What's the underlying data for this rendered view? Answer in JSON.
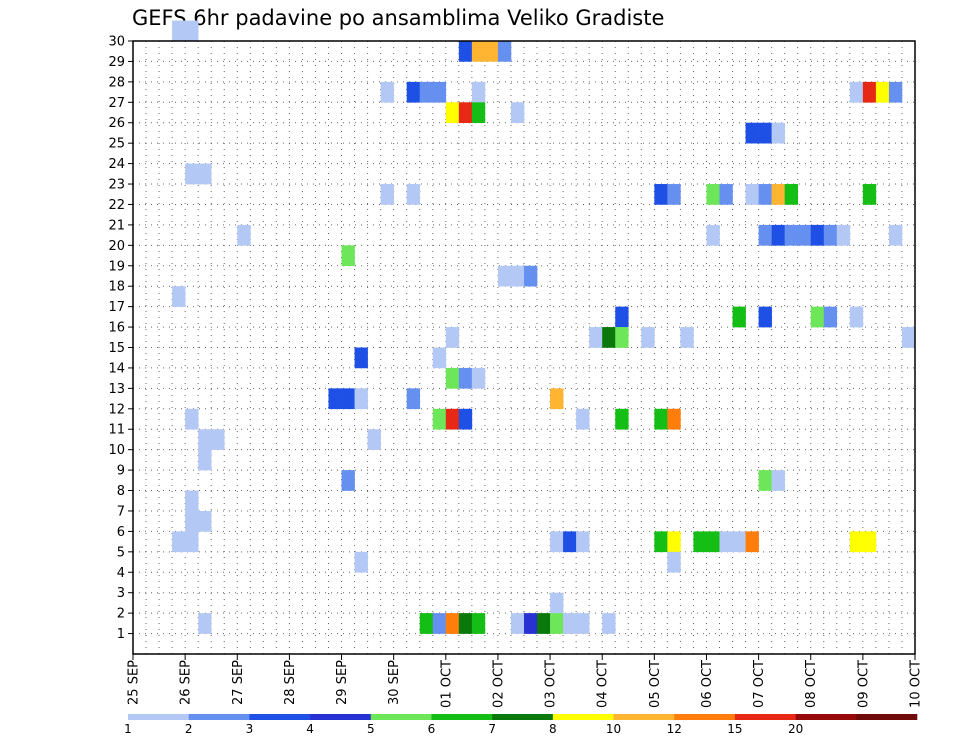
{
  "chart_data": {
    "type": "heatmap",
    "title": "GEFS 6hr padavine po ansamblima Veliko Gradiste",
    "xlabel": "",
    "ylabel": "",
    "x_tick_labels": [
      "25 SEP",
      "26 SEP",
      "27 SEP",
      "28 SEP",
      "29 SEP",
      "30 SEP",
      "01 OCT",
      "02 OCT",
      "03 OCT",
      "04 OCT",
      "05 OCT",
      "06 OCT",
      "07 OCT",
      "08 OCT",
      "09 OCT",
      "10 OCT"
    ],
    "x_range_days": [
      0,
      15
    ],
    "y_tick_labels": [
      "1",
      "2",
      "3",
      "4",
      "5",
      "6",
      "7",
      "8",
      "9",
      "10",
      "11",
      "12",
      "13",
      "14",
      "15",
      "16",
      "17",
      "18",
      "19",
      "20",
      "21",
      "22",
      "23",
      "24",
      "25",
      "26",
      "27",
      "28",
      "29",
      "30"
    ],
    "y_range_members": [
      0,
      30
    ],
    "grid": "dotted",
    "legend": {
      "placement": "bottom",
      "thresholds_mm": [
        "1",
        "2",
        "3",
        "4",
        "5",
        "6",
        "7",
        "8",
        "10",
        "12",
        "15",
        "20"
      ],
      "colors": [
        "#b4c8f5",
        "#6690f0",
        "#1e50e6",
        "#2832d2",
        "#6ee65a",
        "#14be14",
        "#0a780a",
        "#ffff00",
        "#ffb432",
        "#ff7d0a",
        "#e62814",
        "#960a0a",
        "#6e0a0a"
      ]
    },
    "colors": [
      "#b4c8f5",
      "#6690f0",
      "#1e50e6",
      "#2832d2",
      "#6ee65a",
      "#14be14",
      "#0a780a",
      "#ffff00",
      "#ffb432",
      "#ff7d0a",
      "#e62814",
      "#960a0a",
      "#6e0a0a"
    ],
    "cells_note": "each cell: [day_offset_from_25_SEP (step 0.25 = 6h), member_row (1-30), color_class_index]",
    "cells": [
      [
        0.75,
        30,
        0
      ],
      [
        1.0,
        30,
        0
      ],
      [
        6.25,
        29,
        2
      ],
      [
        6.5,
        29,
        8
      ],
      [
        6.75,
        29,
        8
      ],
      [
        7.0,
        29,
        1
      ],
      [
        4.75,
        27,
        0
      ],
      [
        5.25,
        27,
        2
      ],
      [
        5.5,
        27,
        1
      ],
      [
        5.75,
        27,
        1
      ],
      [
        6.5,
        27,
        0
      ],
      [
        13.75,
        27,
        0
      ],
      [
        14.0,
        27,
        10
      ],
      [
        14.25,
        27,
        7
      ],
      [
        14.5,
        27,
        1
      ],
      [
        6.0,
        26,
        7
      ],
      [
        6.25,
        26,
        10
      ],
      [
        6.5,
        26,
        5
      ],
      [
        7.25,
        26,
        0
      ],
      [
        11.75,
        25,
        2
      ],
      [
        12.0,
        25,
        2
      ],
      [
        12.25,
        25,
        0
      ],
      [
        1.0,
        23,
        0
      ],
      [
        1.25,
        23,
        0
      ],
      [
        4.75,
        22,
        0
      ],
      [
        5.25,
        22,
        0
      ],
      [
        10.0,
        22,
        2
      ],
      [
        10.25,
        22,
        1
      ],
      [
        11.0,
        22,
        4
      ],
      [
        11.25,
        22,
        1
      ],
      [
        11.75,
        22,
        0
      ],
      [
        12.0,
        22,
        1
      ],
      [
        12.25,
        22,
        8
      ],
      [
        12.5,
        22,
        5
      ],
      [
        14.0,
        22,
        5
      ],
      [
        2.0,
        20,
        0
      ],
      [
        11.0,
        20,
        0
      ],
      [
        12.0,
        20,
        1
      ],
      [
        12.25,
        20,
        2
      ],
      [
        12.5,
        20,
        1
      ],
      [
        12.75,
        20,
        1
      ],
      [
        13.0,
        20,
        2
      ],
      [
        13.25,
        20,
        1
      ],
      [
        13.5,
        20,
        0
      ],
      [
        14.5,
        20,
        0
      ],
      [
        4.0,
        19,
        4
      ],
      [
        7.0,
        18,
        0
      ],
      [
        7.25,
        18,
        0
      ],
      [
        7.5,
        18,
        1
      ],
      [
        0.75,
        17,
        0
      ],
      [
        9.25,
        16,
        2
      ],
      [
        11.5,
        16,
        5
      ],
      [
        12.0,
        16,
        2
      ],
      [
        13.0,
        16,
        4
      ],
      [
        13.25,
        16,
        1
      ],
      [
        13.75,
        16,
        0
      ],
      [
        6.0,
        15,
        0
      ],
      [
        8.75,
        15,
        0
      ],
      [
        9.0,
        15,
        6
      ],
      [
        9.25,
        15,
        4
      ],
      [
        9.75,
        15,
        0
      ],
      [
        10.5,
        15,
        0
      ],
      [
        14.75,
        15,
        0
      ],
      [
        4.25,
        14,
        2
      ],
      [
        5.75,
        14,
        0
      ],
      [
        6.0,
        13,
        4
      ],
      [
        6.25,
        13,
        1
      ],
      [
        6.5,
        13,
        0
      ],
      [
        3.75,
        12,
        2
      ],
      [
        4.0,
        12,
        2
      ],
      [
        4.25,
        12,
        0
      ],
      [
        5.25,
        12,
        1
      ],
      [
        8.0,
        12,
        8
      ],
      [
        1.0,
        11,
        0
      ],
      [
        5.75,
        11,
        4
      ],
      [
        6.0,
        11,
        10
      ],
      [
        6.25,
        11,
        2
      ],
      [
        8.5,
        11,
        0
      ],
      [
        9.25,
        11,
        5
      ],
      [
        10.0,
        11,
        5
      ],
      [
        10.25,
        11,
        9
      ],
      [
        1.25,
        10,
        0
      ],
      [
        1.5,
        10,
        0
      ],
      [
        4.5,
        10,
        0
      ],
      [
        1.25,
        9,
        0
      ],
      [
        4.0,
        8,
        1
      ],
      [
        12.0,
        8,
        4
      ],
      [
        12.25,
        8,
        0
      ],
      [
        1.0,
        7,
        0
      ],
      [
        1.0,
        6,
        0
      ],
      [
        1.25,
        6,
        0
      ],
      [
        0.75,
        5,
        0
      ],
      [
        1.0,
        5,
        0
      ],
      [
        8.0,
        5,
        0
      ],
      [
        8.25,
        5,
        2
      ],
      [
        8.5,
        5,
        0
      ],
      [
        10.0,
        5,
        5
      ],
      [
        10.25,
        5,
        7
      ],
      [
        10.75,
        5,
        5
      ],
      [
        11.0,
        5,
        5
      ],
      [
        11.25,
        5,
        0
      ],
      [
        11.5,
        5,
        0
      ],
      [
        11.75,
        5,
        9
      ],
      [
        13.75,
        5,
        7
      ],
      [
        14.0,
        5,
        7
      ],
      [
        4.25,
        4,
        0
      ],
      [
        10.25,
        4,
        0
      ],
      [
        8.0,
        2,
        0
      ],
      [
        1.25,
        1,
        0
      ],
      [
        5.5,
        1,
        5
      ],
      [
        5.75,
        1,
        1
      ],
      [
        6.0,
        1,
        9
      ],
      [
        6.25,
        1,
        6
      ],
      [
        6.5,
        1,
        5
      ],
      [
        7.25,
        1,
        0
      ],
      [
        7.5,
        1,
        3
      ],
      [
        7.75,
        1,
        6
      ],
      [
        8.0,
        1,
        4
      ],
      [
        8.25,
        1,
        0
      ],
      [
        8.5,
        1,
        0
      ],
      [
        9.0,
        1,
        0
      ]
    ]
  }
}
